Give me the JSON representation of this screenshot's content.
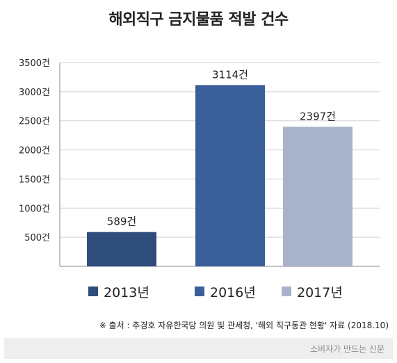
{
  "chart_data": {
    "type": "bar",
    "title": "해외직구 금지물품 적발 건수",
    "categories": [
      "2013년",
      "2016년",
      "2017년"
    ],
    "values": [
      589,
      3114,
      2397
    ],
    "value_labels": [
      "589건",
      "3114건",
      "2397건"
    ],
    "colors": [
      "#2f4d7b",
      "#3b5f9b",
      "#a8b3c9"
    ],
    "y_ticks": [
      500,
      1000,
      1500,
      2000,
      2500,
      3000,
      3500
    ],
    "y_tick_labels": [
      "500건",
      "1000건",
      "1500건",
      "2000건",
      "2500건",
      "3000건",
      "3500건"
    ],
    "ylim": [
      0,
      3500
    ],
    "grid": true,
    "legend_placement": "bottom"
  },
  "legend": [
    {
      "label": "2013년",
      "color": "#2f4d7b"
    },
    {
      "label": "2016년",
      "color": "#3b5f9b"
    },
    {
      "label": "2017년",
      "color": "#a8b3c9"
    }
  ],
  "source": "※ 출처 : 추경호 자유한국당 의원 및 관세청, '해외 직구통관 현황' 자료 (2018.10)",
  "footer": "소비자가 만드는 신문"
}
